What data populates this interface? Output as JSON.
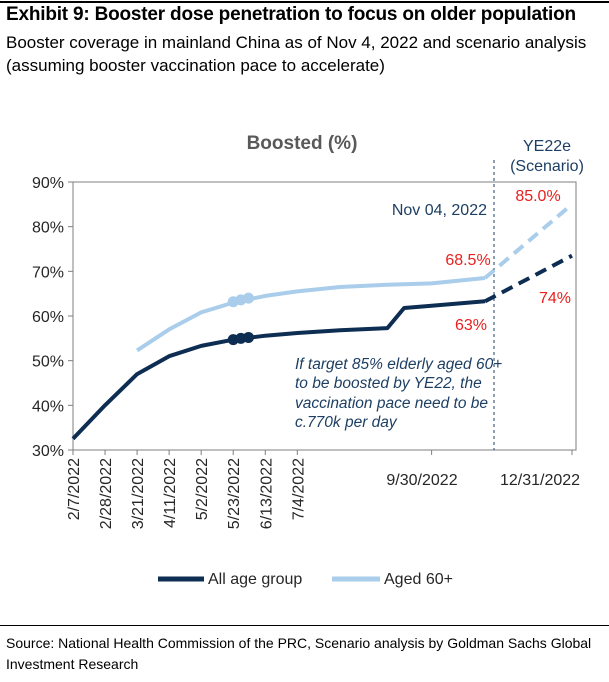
{
  "header": {
    "title": "Exhibit 9: Booster dose penetration to focus on older population",
    "subtitle": "Booster coverage in mainland China as of Nov 4, 2022 and scenario analysis (assuming booster vaccination pace to accelerate)"
  },
  "source": "Source: National Health Commission of the PRC, Scenario analysis by Goldman Sachs Global Investment Research",
  "colors": {
    "all_age": "#0d2d52",
    "aged60": "#a9cdea",
    "red_label": "#e8201e",
    "navy_text": "#1d3f63",
    "axis": "#666666",
    "chart_title": "#595959"
  },
  "chart_data": {
    "type": "line",
    "title": "Boosted (%)",
    "xlabel": "",
    "ylabel": "",
    "ylim": [
      30,
      90
    ],
    "y_ticks": [
      30,
      40,
      50,
      60,
      70,
      80,
      90
    ],
    "y_tick_labels": [
      "30%",
      "40%",
      "50%",
      "60%",
      "70%",
      "80%",
      "90%"
    ],
    "x_tick_labels": [
      "2/7/2022",
      "2/28/2022",
      "3/21/2022",
      "4/11/2022",
      "5/2/2022",
      "5/23/2022",
      "6/13/2022",
      "7/4/2022",
      "9/30/2022",
      "12/31/2022"
    ],
    "grid": false,
    "legend": "bottom",
    "series": [
      {
        "name": "All age group",
        "style": "solid",
        "points": [
          [
            "2/7/2022",
            32.5
          ],
          [
            "2/28/2022",
            40.0
          ],
          [
            "3/21/2022",
            47.0
          ],
          [
            "4/11/2022",
            51.0
          ],
          [
            "5/2/2022",
            53.3
          ],
          [
            "5/23/2022",
            54.7
          ],
          [
            "6/13/2022",
            55.6
          ],
          [
            "7/4/2022",
            56.2
          ],
          [
            "8/1/2022",
            56.8
          ],
          [
            "9/1/2022",
            57.3
          ],
          [
            "9/12/2022",
            61.8
          ],
          [
            "9/30/2022",
            62.3
          ],
          [
            "11/4/2022",
            63.3
          ]
        ],
        "markers": [
          [
            "5/23/2022",
            54.7
          ],
          [
            "5/28/2022",
            55.0
          ],
          [
            "6/2/2022",
            55.2
          ]
        ]
      },
      {
        "name": "Aged 60+",
        "style": "solid",
        "points": [
          [
            "3/21/2022",
            52.3
          ],
          [
            "4/11/2022",
            57.0
          ],
          [
            "5/2/2022",
            60.8
          ],
          [
            "5/23/2022",
            63.0
          ],
          [
            "6/13/2022",
            64.5
          ],
          [
            "7/4/2022",
            65.5
          ],
          [
            "8/1/2022",
            66.5
          ],
          [
            "9/1/2022",
            67.0
          ],
          [
            "9/30/2022",
            67.3
          ],
          [
            "11/4/2022",
            68.5
          ]
        ],
        "markers": [
          [
            "5/23/2022",
            63.2
          ],
          [
            "5/28/2022",
            63.6
          ],
          [
            "6/2/2022",
            64.0
          ]
        ]
      },
      {
        "name": "All age group (scenario)",
        "style": "dashed",
        "points": [
          [
            "11/4/2022",
            63.3
          ],
          [
            "12/31/2022",
            73.5
          ]
        ]
      },
      {
        "name": "Aged 60+ (scenario)",
        "style": "dashed",
        "points": [
          [
            "11/4/2022",
            68.5
          ],
          [
            "12/31/2022",
            85.0
          ]
        ]
      }
    ],
    "annotations": {
      "ye22e": "YE22e",
      "scenario": "(Scenario)",
      "nov04": "Nov 04, 2022",
      "label_850": "85.0%",
      "label_685": "68.5%",
      "label_74": "74%",
      "label_63": "63%",
      "note_lines": [
        "If target 85% elderly aged 60+",
        "to be boosted by YE22, the",
        "vaccination pace need to be",
        "c.770k per day"
      ]
    },
    "legend_labels": [
      "All age group",
      "Aged 60+"
    ]
  }
}
